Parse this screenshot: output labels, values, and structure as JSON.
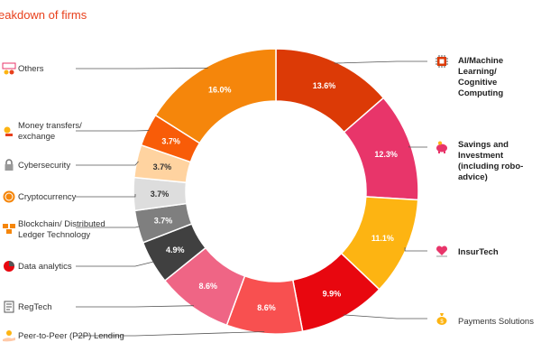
{
  "title": "eakdown of firms",
  "accent_color": "#e8401c",
  "chart_data": {
    "type": "pie",
    "donut": true,
    "title": "eakdown of firms",
    "unit": "%",
    "slices": [
      {
        "label": "AI/Machine Learning/\nCognitive Computing",
        "value": 13.6,
        "display": "13.6%",
        "color": "#dc3a06",
        "icon": "chip-icon"
      },
      {
        "label": "Savings and Investment\n(including robo-advice)",
        "value": 12.3,
        "display": "12.3%",
        "color": "#e8356a",
        "icon": "piggy-bank-icon"
      },
      {
        "label": "InsurTech",
        "value": 11.1,
        "display": "11.1%",
        "color": "#fdb412",
        "icon": "heart-shield-icon"
      },
      {
        "label": "Payments Solutions",
        "value": 9.9,
        "display": "9.9%",
        "color": "#e8070f",
        "icon": "money-bag-icon"
      },
      {
        "label": "Peer-to-Peer (P2P) Lending",
        "value": 8.6,
        "display": "8.6%",
        "color": "#f85050",
        "icon": "hand-coin-icon"
      },
      {
        "label": "RegTech",
        "value": 8.6,
        "display": "8.6%",
        "color": "#ef6585",
        "icon": "document-icon"
      },
      {
        "label": "Data analytics",
        "value": 4.9,
        "display": "4.9%",
        "color": "#404040",
        "icon": "pie-chart-icon"
      },
      {
        "label": "Blockchain/ Distributed\nLedger Technology",
        "value": 3.7,
        "display": "3.7%",
        "color": "#7f7f7f",
        "icon": "blocks-icon"
      },
      {
        "label": "Cryptocurrency",
        "value": 3.7,
        "display": "3.7%",
        "color": "#dddddd",
        "icon": "coin-icon"
      },
      {
        "label": "Cybersecurity",
        "value": 3.7,
        "display": "3.7%",
        "color": "#ffd3a0",
        "icon": "lock-icon"
      },
      {
        "label": "Money transfers/\nexchange",
        "value": 3.7,
        "display": "3.7%",
        "color": "#f85c08",
        "icon": "transfer-icon"
      },
      {
        "label": "Others",
        "value": 16.0,
        "display": "16.0%",
        "color": "#f5860b",
        "icon": "misc-icon"
      }
    ]
  }
}
